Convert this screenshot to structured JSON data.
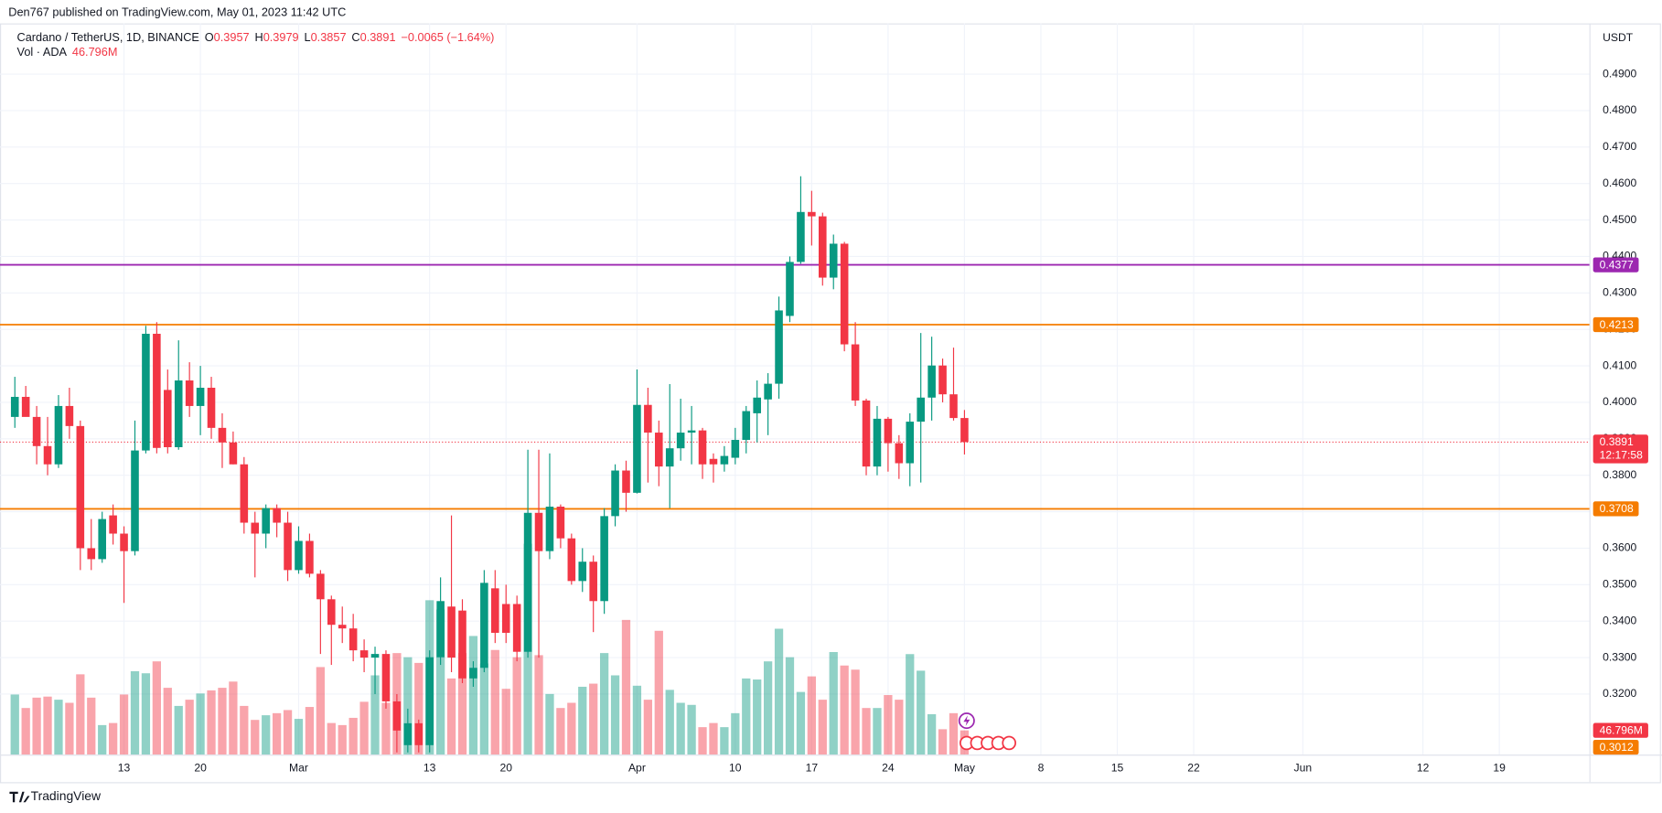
{
  "header": {
    "published": "Den767 published on TradingView.com, May 01, 2023 11:42 UTC",
    "footer": "TradingView"
  },
  "chart_data": {
    "type": "candlestick",
    "symbol": "Cardano / TetherUS, 1D, BINANCE",
    "ohlc_letters": [
      "O",
      "H",
      "L",
      "C"
    ],
    "change": "−0.0065 (−1.64%)",
    "volume_title": "Vol · ADA",
    "volume_last_label": "46.796M",
    "currency": "USDT",
    "countdown": "12:17:58",
    "up_color": "#089981",
    "down_color": "#f23645",
    "x": [
      0,
      1,
      2,
      3,
      4,
      5,
      6,
      7,
      8,
      9,
      10,
      11,
      12,
      13,
      14,
      15,
      16,
      17,
      18,
      19,
      20,
      21,
      22,
      23,
      24,
      25,
      26,
      27,
      28,
      29,
      30,
      31,
      32,
      33,
      34,
      35,
      36,
      37,
      38,
      39,
      40,
      41,
      42,
      43,
      44,
      45,
      46,
      47,
      48,
      49,
      50,
      51,
      52,
      53,
      54,
      55,
      56,
      57,
      58,
      59,
      60,
      61,
      62,
      63,
      64,
      65,
      66,
      67,
      68,
      69,
      70,
      71,
      72,
      73,
      74,
      75,
      76,
      77,
      78,
      79,
      80,
      81,
      82,
      83,
      84,
      85,
      86,
      87
    ],
    "ohlc": [
      [
        0.396,
        0.407,
        0.393,
        0.4015
      ],
      [
        0.4015,
        0.4045,
        0.3975,
        0.396
      ],
      [
        0.396,
        0.399,
        0.383,
        0.388
      ],
      [
        0.388,
        0.396,
        0.38,
        0.383
      ],
      [
        0.383,
        0.402,
        0.382,
        0.399
      ],
      [
        0.399,
        0.404,
        0.39,
        0.3935
      ],
      [
        0.3935,
        0.395,
        0.354,
        0.36
      ],
      [
        0.36,
        0.368,
        0.354,
        0.357
      ],
      [
        0.357,
        0.37,
        0.356,
        0.368
      ],
      [
        0.369,
        0.372,
        0.361,
        0.364
      ],
      [
        0.364,
        0.366,
        0.345,
        0.3592
      ],
      [
        0.3592,
        0.395,
        0.358,
        0.3868
      ],
      [
        0.3868,
        0.421,
        0.386,
        0.4188
      ],
      [
        0.4188,
        0.422,
        0.386,
        0.3875
      ],
      [
        0.4034,
        0.409,
        0.386,
        0.3877
      ],
      [
        0.3877,
        0.417,
        0.387,
        0.406
      ],
      [
        0.406,
        0.411,
        0.396,
        0.399
      ],
      [
        0.399,
        0.41,
        0.391,
        0.404
      ],
      [
        0.404,
        0.407,
        0.39,
        0.393
      ],
      [
        0.393,
        0.397,
        0.382,
        0.389
      ],
      [
        0.389,
        0.392,
        0.383,
        0.383
      ],
      [
        0.383,
        0.385,
        0.364,
        0.367
      ],
      [
        0.367,
        0.37,
        0.352,
        0.364
      ],
      [
        0.364,
        0.372,
        0.36,
        0.371
      ],
      [
        0.371,
        0.372,
        0.363,
        0.367
      ],
      [
        0.367,
        0.37,
        0.351,
        0.354
      ],
      [
        0.354,
        0.366,
        0.353,
        0.362
      ],
      [
        0.362,
        0.364,
        0.352,
        0.353
      ],
      [
        0.353,
        0.354,
        0.331,
        0.346
      ],
      [
        0.346,
        0.347,
        0.328,
        0.339
      ],
      [
        0.339,
        0.344,
        0.334,
        0.338
      ],
      [
        0.338,
        0.342,
        0.329,
        0.332
      ],
      [
        0.332,
        0.335,
        0.326,
        0.33
      ],
      [
        0.33,
        0.333,
        0.32,
        0.331
      ],
      [
        0.331,
        0.332,
        0.316,
        0.318
      ],
      [
        0.318,
        0.32,
        0.304,
        0.31
      ],
      [
        0.306,
        0.316,
        0.304,
        0.312
      ],
      [
        0.312,
        0.313,
        0.304,
        0.306
      ],
      [
        0.306,
        0.332,
        0.304,
        0.3301
      ],
      [
        0.3301,
        0.352,
        0.328,
        0.3455
      ],
      [
        0.344,
        0.369,
        0.326,
        0.33
      ],
      [
        0.3429,
        0.346,
        0.323,
        0.3243
      ],
      [
        0.3243,
        0.329,
        0.322,
        0.3272
      ],
      [
        0.3272,
        0.354,
        0.326,
        0.3505
      ],
      [
        0.349,
        0.354,
        0.334,
        0.3368
      ],
      [
        0.3447,
        0.35,
        0.334,
        0.3368
      ],
      [
        0.3447,
        0.347,
        0.329,
        0.3316
      ],
      [
        0.3316,
        0.387,
        0.33,
        0.3697
      ],
      [
        0.3697,
        0.387,
        0.33,
        0.3592
      ],
      [
        0.3592,
        0.386,
        0.357,
        0.3714
      ],
      [
        0.3714,
        0.372,
        0.36,
        0.3627
      ],
      [
        0.3627,
        0.364,
        0.35,
        0.351
      ],
      [
        0.351,
        0.36,
        0.348,
        0.3563
      ],
      [
        0.3563,
        0.358,
        0.337,
        0.3455
      ],
      [
        0.3455,
        0.371,
        0.342,
        0.3688
      ],
      [
        0.3688,
        0.383,
        0.366,
        0.3813
      ],
      [
        0.3813,
        0.384,
        0.37,
        0.3752
      ],
      [
        0.3752,
        0.409,
        0.375,
        0.3993
      ],
      [
        0.3993,
        0.404,
        0.378,
        0.3917
      ],
      [
        0.3917,
        0.395,
        0.377,
        0.3824
      ],
      [
        0.3824,
        0.405,
        0.371,
        0.3874
      ],
      [
        0.3874,
        0.401,
        0.384,
        0.3917
      ],
      [
        0.3917,
        0.399,
        0.383,
        0.3923
      ],
      [
        0.3923,
        0.393,
        0.379,
        0.383
      ],
      [
        0.3845,
        0.386,
        0.378,
        0.383
      ],
      [
        0.383,
        0.388,
        0.381,
        0.3853
      ],
      [
        0.3848,
        0.393,
        0.383,
        0.3897
      ],
      [
        0.3897,
        0.399,
        0.386,
        0.3976
      ],
      [
        0.397,
        0.406,
        0.389,
        0.4013
      ],
      [
        0.4008,
        0.408,
        0.391,
        0.4051
      ],
      [
        0.4051,
        0.429,
        0.401,
        0.4252
      ],
      [
        0.4237,
        0.44,
        0.422,
        0.4385
      ],
      [
        0.4385,
        0.462,
        0.438,
        0.4522
      ],
      [
        0.4522,
        0.458,
        0.443,
        0.451
      ],
      [
        0.451,
        0.452,
        0.432,
        0.4342
      ],
      [
        0.4342,
        0.446,
        0.431,
        0.4435
      ],
      [
        0.4435,
        0.444,
        0.414,
        0.4159
      ],
      [
        0.4159,
        0.422,
        0.399,
        0.4005
      ],
      [
        0.4005,
        0.401,
        0.38,
        0.3824
      ],
      [
        0.3824,
        0.399,
        0.38,
        0.3955
      ],
      [
        0.3955,
        0.396,
        0.381,
        0.3888
      ],
      [
        0.3888,
        0.391,
        0.379,
        0.3833
      ],
      [
        0.3833,
        0.397,
        0.377,
        0.3947
      ],
      [
        0.3947,
        0.419,
        0.378,
        0.4013
      ],
      [
        0.4013,
        0.418,
        0.395,
        0.4101
      ],
      [
        0.4101,
        0.412,
        0.4,
        0.4022
      ],
      [
        0.4022,
        0.415,
        0.395,
        0.3957
      ],
      [
        0.3957,
        0.3979,
        0.3857,
        0.3891
      ]
    ],
    "volumes": [
      116,
      90,
      110,
      112,
      106,
      100,
      155,
      110,
      57,
      61,
      116,
      161,
      157,
      180,
      129,
      94,
      106,
      118,
      124,
      129,
      141,
      94,
      67,
      76,
      80,
      86,
      69,
      92,
      169,
      61,
      57,
      71,
      102,
      153,
      100,
      196,
      188,
      177,
      298,
      280,
      147,
      196,
      229,
      176,
      202,
      127,
      188,
      407,
      192,
      117,
      90,
      100,
      131,
      137,
      196,
      153,
      260,
      133,
      106,
      239,
      125,
      100,
      96,
      53,
      61,
      53,
      80,
      147,
      145,
      180,
      243,
      188,
      121,
      151,
      106,
      198,
      172,
      164,
      90,
      90,
      115,
      106,
      194,
      162,
      78,
      49,
      80,
      46.796
    ],
    "volume_lim": [
      0,
      450
    ],
    "xlim": [
      -1.36,
      144.3
    ],
    "xticks": [
      {
        "value": 10,
        "label": "13"
      },
      {
        "value": 17,
        "label": "20"
      },
      {
        "value": 26,
        "label": "Mar"
      },
      {
        "value": 38,
        "label": "13"
      },
      {
        "value": 45,
        "label": "20"
      },
      {
        "value": 57,
        "label": "Apr"
      },
      {
        "value": 66,
        "label": "10"
      },
      {
        "value": 73,
        "label": "17"
      },
      {
        "value": 80,
        "label": "24"
      },
      {
        "value": 87,
        "label": "May"
      },
      {
        "value": 94,
        "label": "8"
      },
      {
        "value": 101,
        "label": "15"
      },
      {
        "value": 108,
        "label": "22"
      },
      {
        "value": 118,
        "label": "Jun"
      },
      {
        "value": 129,
        "label": "12"
      },
      {
        "value": 136,
        "label": "19"
      }
    ],
    "ylim": [
      0.3034,
      0.5103
    ],
    "yticks": [
      {
        "value": 0.32,
        "label": "0.3200"
      },
      {
        "value": 0.33,
        "label": "0.3300"
      },
      {
        "value": 0.34,
        "label": "0.3400"
      },
      {
        "value": 0.35,
        "label": "0.3500"
      },
      {
        "value": 0.36,
        "label": "0.3600"
      },
      {
        "value": 0.37,
        "label": "0.3700"
      },
      {
        "value": 0.38,
        "label": "0.3800"
      },
      {
        "value": 0.39,
        "label": "0.3900"
      },
      {
        "value": 0.4,
        "label": "0.4000"
      },
      {
        "value": 0.41,
        "label": "0.4100"
      },
      {
        "value": 0.42,
        "label": "0.4200"
      },
      {
        "value": 0.43,
        "label": "0.4300"
      },
      {
        "value": 0.44,
        "label": "0.4400"
      },
      {
        "value": 0.45,
        "label": "0.4500"
      },
      {
        "value": 0.46,
        "label": "0.4600"
      },
      {
        "value": 0.47,
        "label": "0.4700"
      },
      {
        "value": 0.48,
        "label": "0.4800"
      },
      {
        "value": 0.49,
        "label": "0.4900"
      }
    ],
    "grid": true,
    "levels": [
      {
        "value": 0.4377,
        "color": "#9c27b0",
        "line": true
      },
      {
        "value": 0.4213,
        "color": "#f57c00",
        "line": true
      },
      {
        "value": 0.3708,
        "color": "#f57c00",
        "line": true
      },
      {
        "value": 0.3012,
        "color": "#f57c00",
        "line": false
      }
    ]
  }
}
